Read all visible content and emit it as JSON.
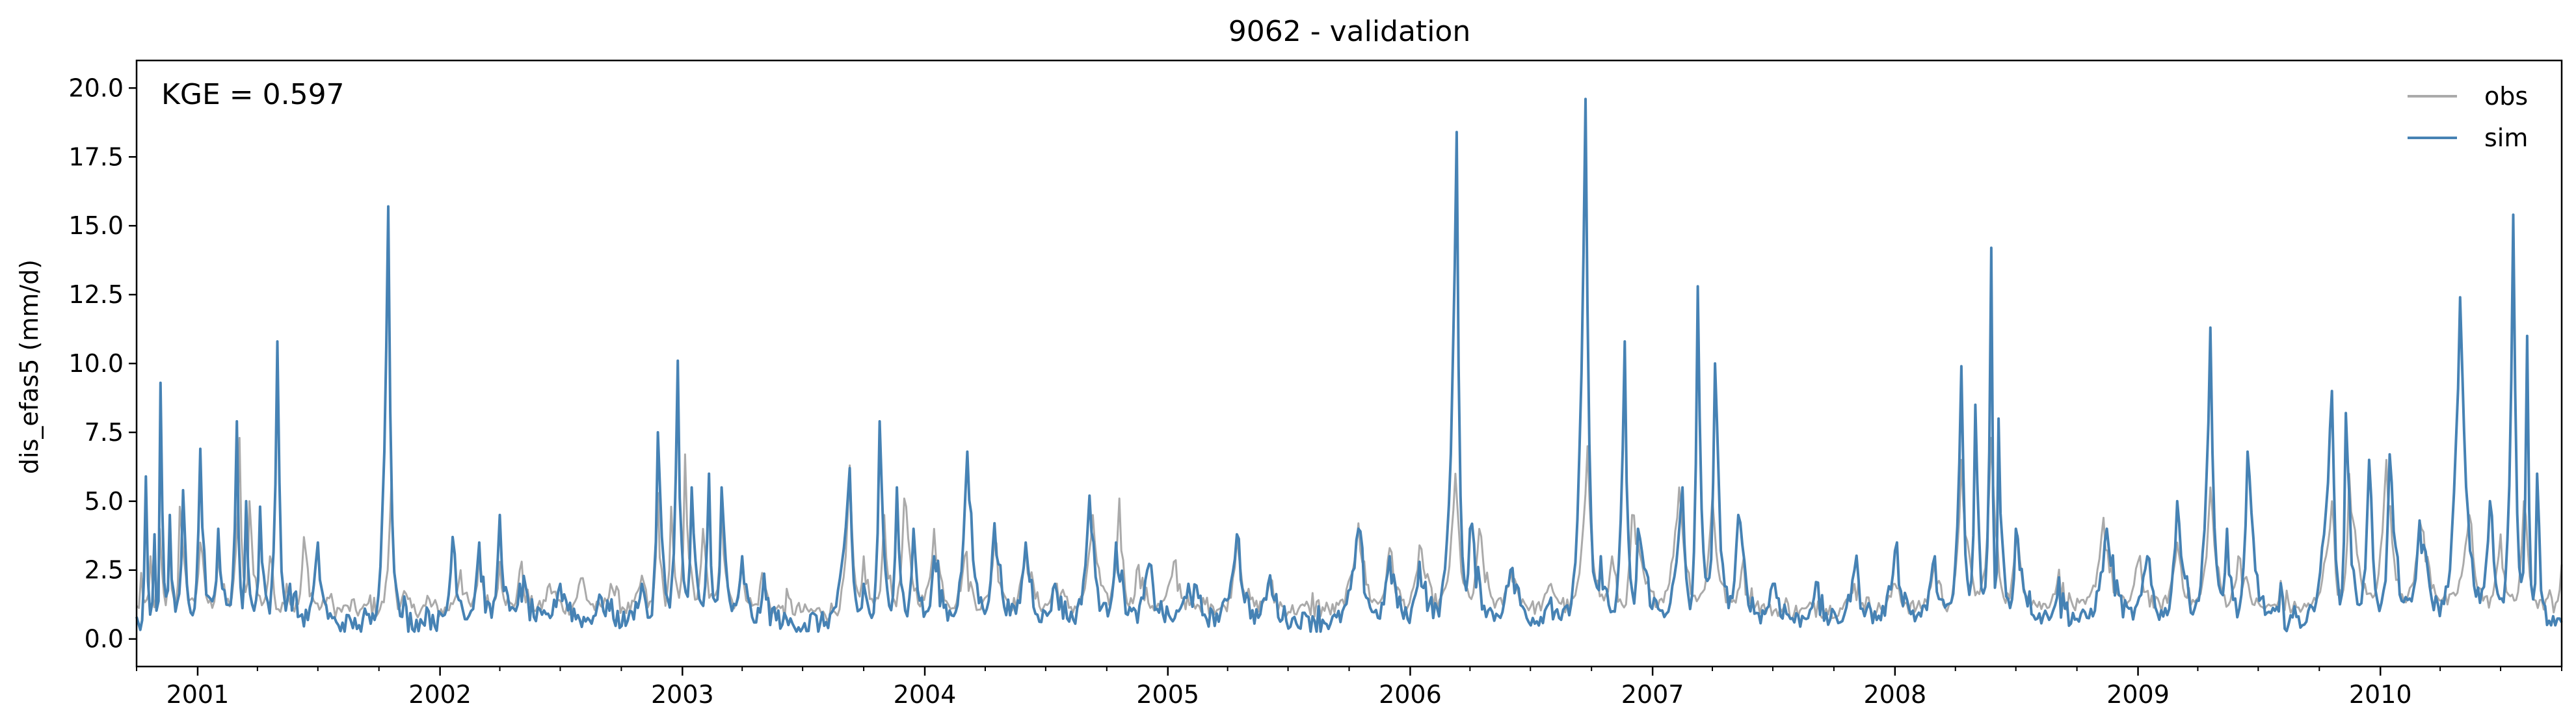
{
  "chart_data": {
    "type": "line",
    "title": "9062 - validation",
    "xlabel": "",
    "ylabel": "dis_efas5 (mm/d)",
    "annotation": "KGE = 0.597",
    "xlim": [
      "2000-10-01",
      "2010-10-01"
    ],
    "ylim": [
      -1.0,
      21.0
    ],
    "yticks": [
      0.0,
      2.5,
      5.0,
      7.5,
      10.0,
      12.5,
      15.0,
      17.5,
      20.0
    ],
    "ytick_labels": [
      "0.0",
      "2.5",
      "5.0",
      "7.5",
      "10.0",
      "12.5",
      "15.0",
      "17.5",
      "20.0"
    ],
    "xticks": [
      "2001-01-01",
      "2002-01-01",
      "2003-01-01",
      "2004-01-01",
      "2005-01-01",
      "2006-01-01",
      "2007-01-01",
      "2008-01-01",
      "2009-01-01",
      "2010-01-01"
    ],
    "xtick_labels": [
      "2001",
      "2002",
      "2003",
      "2004",
      "2005",
      "2006",
      "2007",
      "2008",
      "2009",
      "2010"
    ],
    "grid": false,
    "legend": "top-right",
    "series": [
      {
        "name": "obs",
        "color": "#aaaaaa",
        "points": [
          [
            "2000-10-01",
            1.2
          ],
          [
            "2000-10-08",
            2.4
          ],
          [
            "2000-10-22",
            3.0
          ],
          [
            "2000-11-05",
            4.0
          ],
          [
            "2000-11-20",
            3.5
          ],
          [
            "2000-12-05",
            4.8
          ],
          [
            "2001-01-05",
            3.5
          ],
          [
            "2001-02-01",
            3.0
          ],
          [
            "2001-03-05",
            7.3
          ],
          [
            "2001-03-20",
            5.0
          ],
          [
            "2001-04-20",
            3.0
          ],
          [
            "2001-05-15",
            2.0
          ],
          [
            "2001-06-10",
            3.7
          ],
          [
            "2001-07-15",
            1.5
          ],
          [
            "2001-08-15",
            1.2
          ],
          [
            "2001-09-15",
            1.3
          ],
          [
            "2001-10-20",
            5.8
          ],
          [
            "2001-11-05",
            1.5
          ],
          [
            "2001-12-10",
            1.2
          ],
          [
            "2002-02-01",
            2.5
          ],
          [
            "2002-03-01",
            3.0
          ],
          [
            "2002-04-01",
            2.8
          ],
          [
            "2002-05-01",
            2.5
          ],
          [
            "2002-06-15",
            2.0
          ],
          [
            "2002-08-01",
            2.2
          ],
          [
            "2002-09-15",
            2.0
          ],
          [
            "2002-11-01",
            2.3
          ],
          [
            "2002-11-25",
            5.3
          ],
          [
            "2002-12-15",
            4.8
          ],
          [
            "2003-01-05",
            6.7
          ],
          [
            "2003-02-01",
            4.0
          ],
          [
            "2003-03-01",
            4.8
          ],
          [
            "2003-04-01",
            2.8
          ],
          [
            "2003-05-01",
            2.4
          ],
          [
            "2003-06-01",
            1.2
          ],
          [
            "2003-08-01",
            1.0
          ],
          [
            "2003-09-10",
            6.3
          ],
          [
            "2003-10-01",
            3.0
          ],
          [
            "2003-11-01",
            4.5
          ],
          [
            "2003-12-01",
            5.1
          ],
          [
            "2004-01-15",
            4.0
          ],
          [
            "2004-03-01",
            3.0
          ],
          [
            "2004-04-15",
            3.6
          ],
          [
            "2004-06-01",
            3.4
          ],
          [
            "2004-07-15",
            2.0
          ],
          [
            "2004-09-10",
            4.5
          ],
          [
            "2004-10-20",
            5.1
          ],
          [
            "2004-11-15",
            2.5
          ],
          [
            "2005-01-10",
            2.8
          ],
          [
            "2005-03-01",
            1.5
          ],
          [
            "2005-04-15",
            3.7
          ],
          [
            "2005-06-01",
            1.8
          ],
          [
            "2005-08-01",
            1.2
          ],
          [
            "2005-10-15",
            4.2
          ],
          [
            "2005-12-01",
            3.3
          ],
          [
            "2006-01-15",
            3.4
          ],
          [
            "2006-03-10",
            6.0
          ],
          [
            "2006-04-15",
            4.0
          ],
          [
            "2006-06-01",
            2.5
          ],
          [
            "2006-08-01",
            2.0
          ],
          [
            "2006-09-25",
            7.0
          ],
          [
            "2006-11-01",
            3.0
          ],
          [
            "2006-12-01",
            4.5
          ],
          [
            "2007-02-10",
            5.5
          ],
          [
            "2007-04-01",
            5.1
          ],
          [
            "2007-05-15",
            2.5
          ],
          [
            "2007-07-15",
            1.0
          ],
          [
            "2007-09-01",
            1.3
          ],
          [
            "2007-11-01",
            2.0
          ],
          [
            "2008-01-01",
            2.0
          ],
          [
            "2008-03-01",
            2.7
          ],
          [
            "2008-04-10",
            6.5
          ],
          [
            "2008-05-25",
            7.3
          ],
          [
            "2008-07-01",
            3.5
          ],
          [
            "2008-09-01",
            2.0
          ],
          [
            "2008-11-10",
            4.4
          ],
          [
            "2009-01-01",
            2.8
          ],
          [
            "2009-03-01",
            3.5
          ],
          [
            "2009-04-20",
            5.5
          ],
          [
            "2009-06-01",
            3.0
          ],
          [
            "2009-08-01",
            1.4
          ],
          [
            "2009-10-20",
            5.0
          ],
          [
            "2009-11-15",
            6.0
          ],
          [
            "2010-01-10",
            6.5
          ],
          [
            "2010-03-01",
            4.3
          ],
          [
            "2010-05-15",
            4.5
          ],
          [
            "2010-07-01",
            3.8
          ],
          [
            "2010-08-05",
            5.0
          ],
          [
            "2010-09-10",
            1.5
          ],
          [
            "2010-10-01",
            2.7
          ]
        ]
      },
      {
        "name": "sim",
        "color": "#4682b4",
        "points": [
          [
            "2000-10-01",
            0.8
          ],
          [
            "2000-10-15",
            5.9
          ],
          [
            "2000-10-28",
            3.8
          ],
          [
            "2000-11-06",
            9.3
          ],
          [
            "2000-11-20",
            4.5
          ],
          [
            "2000-12-10",
            5.4
          ],
          [
            "2001-01-05",
            6.9
          ],
          [
            "2001-02-01",
            4.0
          ],
          [
            "2001-03-01",
            7.9
          ],
          [
            "2001-03-15",
            5.0
          ],
          [
            "2001-04-05",
            4.8
          ],
          [
            "2001-05-01",
            10.8
          ],
          [
            "2001-05-20",
            2.0
          ],
          [
            "2001-07-01",
            3.5
          ],
          [
            "2001-08-01",
            0.5
          ],
          [
            "2001-09-01",
            0.5
          ],
          [
            "2001-10-15",
            15.7
          ],
          [
            "2001-11-05",
            0.8
          ],
          [
            "2001-12-15",
            1.0
          ],
          [
            "2002-01-20",
            3.7
          ],
          [
            "2002-03-01",
            3.5
          ],
          [
            "2002-04-01",
            4.5
          ],
          [
            "2002-05-01",
            2.0
          ],
          [
            "2002-07-01",
            2.0
          ],
          [
            "2002-09-01",
            1.5
          ],
          [
            "2002-11-01",
            2.0
          ],
          [
            "2002-11-25",
            7.5
          ],
          [
            "2002-12-25",
            10.1
          ],
          [
            "2003-01-15",
            5.5
          ],
          [
            "2003-02-10",
            6.0
          ],
          [
            "2003-03-01",
            5.5
          ],
          [
            "2003-04-01",
            3.0
          ],
          [
            "2003-05-01",
            1.5
          ],
          [
            "2003-07-01",
            0.4
          ],
          [
            "2003-09-10",
            6.2
          ],
          [
            "2003-10-01",
            2.0
          ],
          [
            "2003-10-25",
            7.9
          ],
          [
            "2003-11-20",
            5.5
          ],
          [
            "2003-12-15",
            4.0
          ],
          [
            "2004-01-15",
            3.0
          ],
          [
            "2004-03-05",
            6.8
          ],
          [
            "2004-04-15",
            4.2
          ],
          [
            "2004-06-01",
            3.5
          ],
          [
            "2004-07-15",
            2.0
          ],
          [
            "2004-09-05",
            5.2
          ],
          [
            "2004-10-15",
            3.5
          ],
          [
            "2004-12-01",
            2.5
          ],
          [
            "2005-02-01",
            2.0
          ],
          [
            "2005-04-15",
            3.8
          ],
          [
            "2005-06-01",
            2.0
          ],
          [
            "2005-08-01",
            0.8
          ],
          [
            "2005-10-15",
            4.0
          ],
          [
            "2005-12-01",
            3.0
          ],
          [
            "2006-01-15",
            2.8
          ],
          [
            "2006-03-12",
            18.4
          ],
          [
            "2006-04-01",
            4.0
          ],
          [
            "2006-06-01",
            2.5
          ],
          [
            "2006-08-01",
            1.5
          ],
          [
            "2006-09-22",
            19.6
          ],
          [
            "2006-10-15",
            3.0
          ],
          [
            "2006-11-20",
            10.8
          ],
          [
            "2006-12-10",
            4.0
          ],
          [
            "2007-02-15",
            5.5
          ],
          [
            "2007-03-10",
            12.8
          ],
          [
            "2007-04-05",
            10.0
          ],
          [
            "2007-05-10",
            4.5
          ],
          [
            "2007-07-01",
            2.0
          ],
          [
            "2007-09-01",
            1.5
          ],
          [
            "2007-11-01",
            2.5
          ],
          [
            "2008-01-01",
            3.2
          ],
          [
            "2008-03-01",
            3.0
          ],
          [
            "2008-04-10",
            9.9
          ],
          [
            "2008-05-01",
            8.5
          ],
          [
            "2008-05-25",
            14.2
          ],
          [
            "2008-06-05",
            8.0
          ],
          [
            "2008-07-01",
            4.0
          ],
          [
            "2008-09-01",
            1.5
          ],
          [
            "2008-11-15",
            4.0
          ],
          [
            "2009-01-15",
            3.0
          ],
          [
            "2009-03-01",
            5.0
          ],
          [
            "2009-04-20",
            11.3
          ],
          [
            "2009-05-15",
            4.0
          ],
          [
            "2009-06-15",
            6.8
          ],
          [
            "2009-08-01",
            1.0
          ],
          [
            "2009-10-20",
            9.0
          ],
          [
            "2009-11-10",
            8.2
          ],
          [
            "2009-12-15",
            6.5
          ],
          [
            "2010-01-15",
            6.7
          ],
          [
            "2010-03-01",
            4.3
          ],
          [
            "2010-05-01",
            12.4
          ],
          [
            "2010-06-15",
            5.0
          ],
          [
            "2010-07-20",
            15.4
          ],
          [
            "2010-08-10",
            11.0
          ],
          [
            "2010-08-25",
            6.0
          ],
          [
            "2010-09-15",
            0.5
          ],
          [
            "2010-10-01",
            0.6
          ]
        ]
      }
    ]
  }
}
